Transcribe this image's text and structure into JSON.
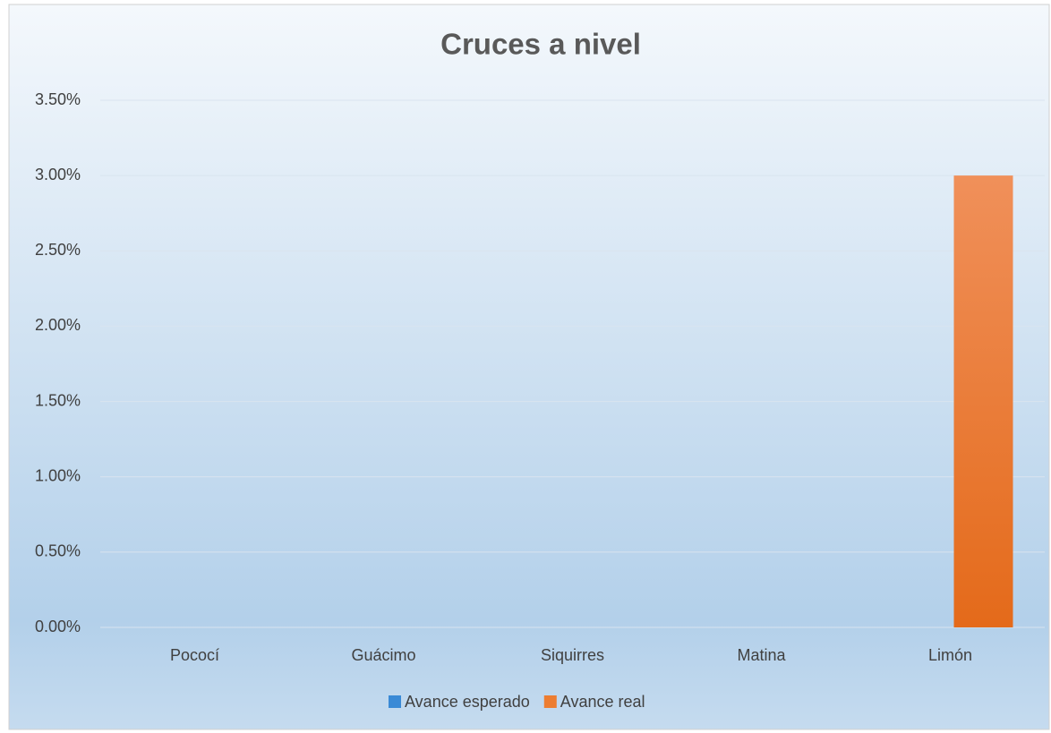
{
  "chart_data": {
    "type": "bar",
    "title": "Cruces a nivel",
    "categories": [
      "Pococí",
      "Guácimo",
      "Siquirres",
      "Matina",
      "Limón"
    ],
    "series": [
      {
        "name": "Avance esperado",
        "color": "#3a8ad6",
        "values": [
          0,
          0,
          0,
          0,
          0
        ]
      },
      {
        "name": "Avance real",
        "color": "#ed7d31",
        "values": [
          0,
          0,
          0,
          0,
          3
        ]
      }
    ],
    "ylim": [
      0,
      3.5
    ],
    "yticks": [
      {
        "value": 0,
        "label": "0.00%"
      },
      {
        "value": 0.5,
        "label": "0.50%"
      },
      {
        "value": 1,
        "label": "1.00%"
      },
      {
        "value": 1.5,
        "label": "1.50%"
      },
      {
        "value": 2,
        "label": "2.00%"
      },
      {
        "value": 2.5,
        "label": "2.50%"
      },
      {
        "value": 3,
        "label": "3.00%"
      },
      {
        "value": 3.5,
        "label": "3.50%"
      }
    ],
    "grid": true,
    "legend": "bottom"
  }
}
